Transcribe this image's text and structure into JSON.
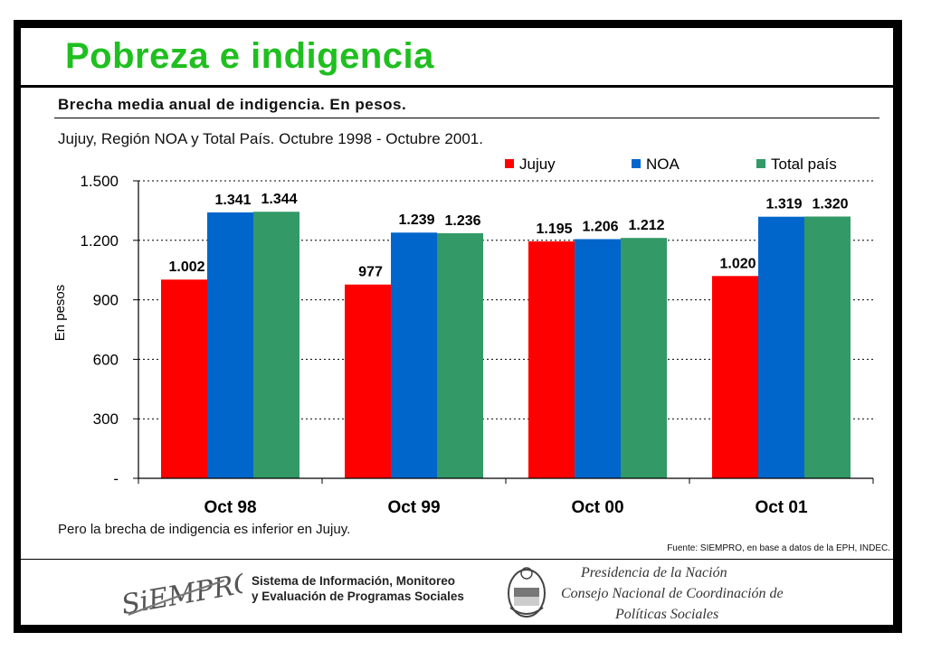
{
  "header": {
    "title": "Pobreza e indigencia",
    "subtitle": "Brecha media anual de indigencia. En pesos.",
    "scope": "Jujuy, Región NOA y Total País. Octubre 1998 - Octubre 2001."
  },
  "note": "Pero la brecha de indigencia es inferior en Jujuy.",
  "source": "Fuente: SIEMPRO, en base a datos de la EPH, INDEC.",
  "footer": {
    "siempro_logo": "SiEMPRO",
    "siempro_line1": "Sistema de Información, Monitoreo",
    "siempro_line2": "y Evaluación de Programas Sociales",
    "presidencia_line1": "Presidencia de la Nación",
    "presidencia_line2": "Consejo Nacional de Coordinación de",
    "presidencia_line3": "Políticas Sociales"
  },
  "chart_data": {
    "type": "bar",
    "title": "",
    "xlabel": "",
    "ylabel": "En pesos",
    "categories": [
      "Oct 98",
      "Oct 99",
      "Oct 00",
      "Oct 01"
    ],
    "series": [
      {
        "name": "Jujuy",
        "color": "#ff0000",
        "values": [
          1002,
          977,
          1195,
          1020
        ],
        "labels": [
          "1.002",
          "977",
          "1.195",
          "1.020"
        ]
      },
      {
        "name": "NOA",
        "color": "#0066cc",
        "values": [
          1341,
          1239,
          1206,
          1319
        ],
        "labels": [
          "1.341",
          "1.239",
          "1.206",
          "1.319"
        ]
      },
      {
        "name": "Total país",
        "color": "#339966",
        "values": [
          1344,
          1236,
          1212,
          1320
        ],
        "labels": [
          "1.344",
          "1.236",
          "1.212",
          "1.320"
        ]
      }
    ],
    "ylim": [
      0,
      1500
    ],
    "yticks": [
      0,
      300,
      600,
      900,
      1200,
      1500
    ],
    "ytick_labels": [
      "-",
      "300",
      "600",
      "900",
      "1.200",
      "1.500"
    ],
    "grid": true,
    "legend_position": "top-right"
  }
}
